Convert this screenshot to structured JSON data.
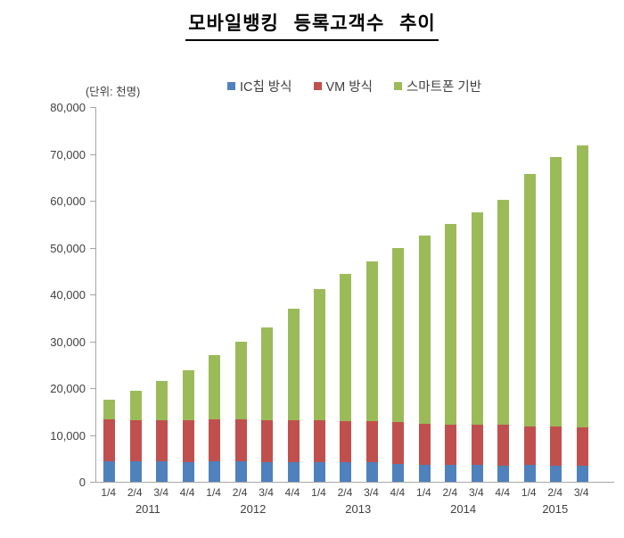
{
  "title": "모바일뱅킹 등록고객수 추이",
  "unit_label": "(단위: 천명)",
  "legend": [
    {
      "label": "IC칩 방식",
      "color": "#4F81BD"
    },
    {
      "label": "VM 방식",
      "color": "#C0504D"
    },
    {
      "label": "스마트폰 기반",
      "color": "#9BBB59"
    }
  ],
  "chart_data": {
    "type": "bar",
    "stacked": true,
    "title": "모바일뱅킹 등록고객수 추이",
    "unit": "천명",
    "legend_position": "top",
    "grid": false,
    "categories": [
      "1/4",
      "2/4",
      "3/4",
      "4/4",
      "1/4",
      "2/4",
      "3/4",
      "4/4",
      "1/4",
      "2/4",
      "3/4",
      "4/4",
      "1/4",
      "2/4",
      "3/4",
      "4/4",
      "1/4",
      "2/4",
      "3/4"
    ],
    "year_groups": [
      {
        "year": "2011",
        "count": 4
      },
      {
        "year": "2012",
        "count": 4
      },
      {
        "year": "2013",
        "count": 4
      },
      {
        "year": "2014",
        "count": 4
      },
      {
        "year": "2015",
        "count": 3
      }
    ],
    "series": [
      {
        "name": "IC칩 방식",
        "color": "#4F81BD",
        "values": [
          4400,
          4300,
          4300,
          4200,
          4300,
          4300,
          4200,
          4100,
          4100,
          4100,
          4100,
          3900,
          3700,
          3600,
          3600,
          3500,
          3600,
          3500,
          3500
        ]
      },
      {
        "name": "VM 방식",
        "color": "#C0504D",
        "values": [
          8900,
          8900,
          8800,
          8900,
          9000,
          9000,
          9000,
          9000,
          9100,
          8900,
          8900,
          8900,
          8700,
          8600,
          8600,
          8600,
          8200,
          8300,
          8100
        ]
      },
      {
        "name": "스마트폰 기반",
        "color": "#9BBB59",
        "values": [
          4200,
          6200,
          8500,
          10700,
          13800,
          16700,
          19800,
          23900,
          27900,
          31300,
          34000,
          37200,
          40100,
          42800,
          45400,
          48100,
          53900,
          57500,
          60300
        ]
      }
    ],
    "totals": [
      17500,
      19400,
      21600,
      23800,
      27100,
      30000,
      33000,
      37000,
      41100,
      44300,
      47000,
      50000,
      52500,
      55000,
      57600,
      60200,
      65700,
      69300,
      71900
    ],
    "ylim": [
      0,
      80000
    ],
    "yticks": [
      "0",
      "10,000",
      "20,000",
      "30,000",
      "40,000",
      "50,000",
      "60,000",
      "70,000",
      "80,000"
    ]
  }
}
